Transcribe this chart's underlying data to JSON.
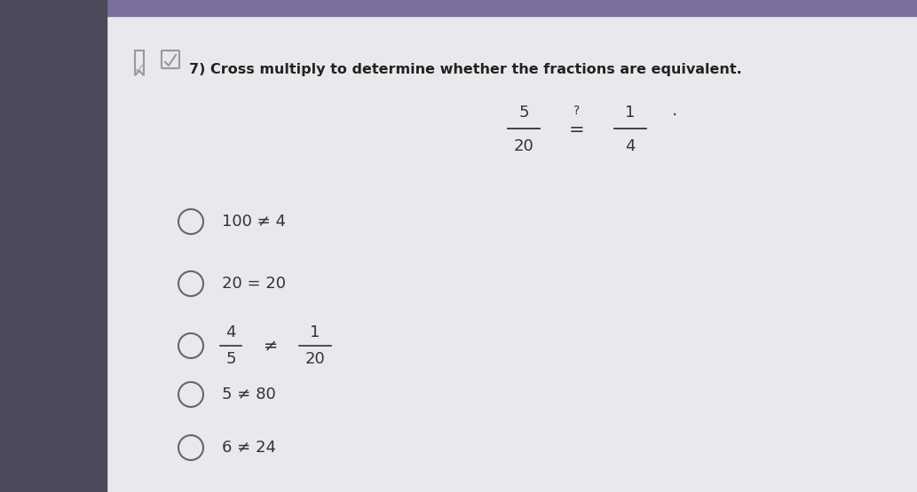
{
  "top_bar_color": "#7b6fa0",
  "left_panel_color": "#4a4a5a",
  "content_bg": "#e8e8ec",
  "page_bg": "#dcdce0",
  "title": "7) Cross multiply to determine whether the fractions are equivalent.",
  "title_fontsize": 11.5,
  "title_fontweight": "bold",
  "title_color": "#222222",
  "fraction_eq": {
    "num1": "5",
    "den1": "20",
    "num2": "1",
    "den2": "4",
    "eq_sign": "=",
    "q_mark": "?"
  },
  "options": [
    {
      "text": "100 ≠ 4",
      "frac": false
    },
    {
      "text": "20 = 20",
      "frac": false
    },
    {
      "frac": true,
      "num1": "4",
      "den1": "5",
      "sym": "≠",
      "num2": "1",
      "den2": "20"
    },
    {
      "text": "5 ≠ 80",
      "frac": false
    },
    {
      "text": "6 ≠ 24",
      "frac": false
    }
  ],
  "circle_color": "#666666",
  "text_color": "#333333",
  "option_fontsize": 13
}
